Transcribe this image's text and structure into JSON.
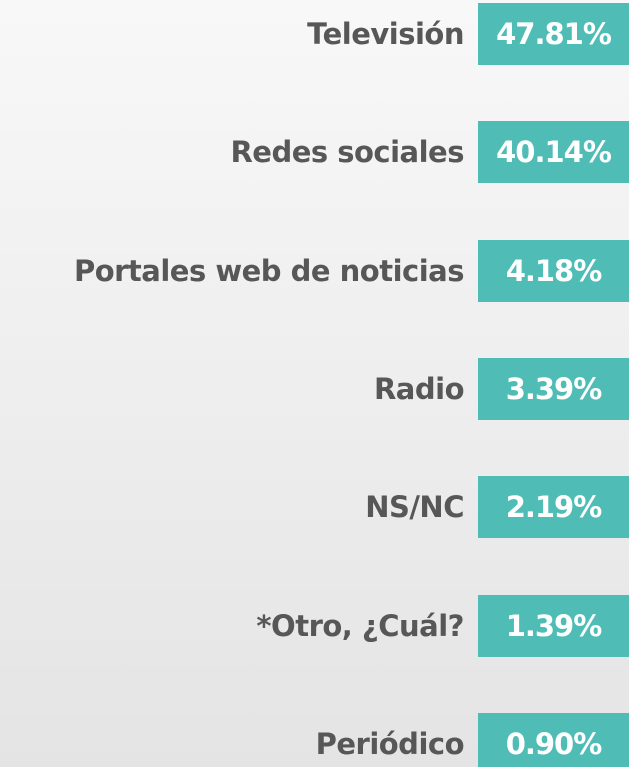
{
  "items": [
    {
      "label": "Televisión",
      "value": "47.81%"
    },
    {
      "label": "Redes sociales",
      "value": "40.14%"
    },
    {
      "label": "Portales web de noticias",
      "value": "4.18%"
    },
    {
      "label": "Radio",
      "value": "3.39%"
    },
    {
      "label": "NS/NC",
      "value": "2.19%"
    },
    {
      "label": "*Otro, ¿Cuál?",
      "value": "1.39%"
    },
    {
      "label": "Periódico",
      "value": "0.90%"
    }
  ]
}
